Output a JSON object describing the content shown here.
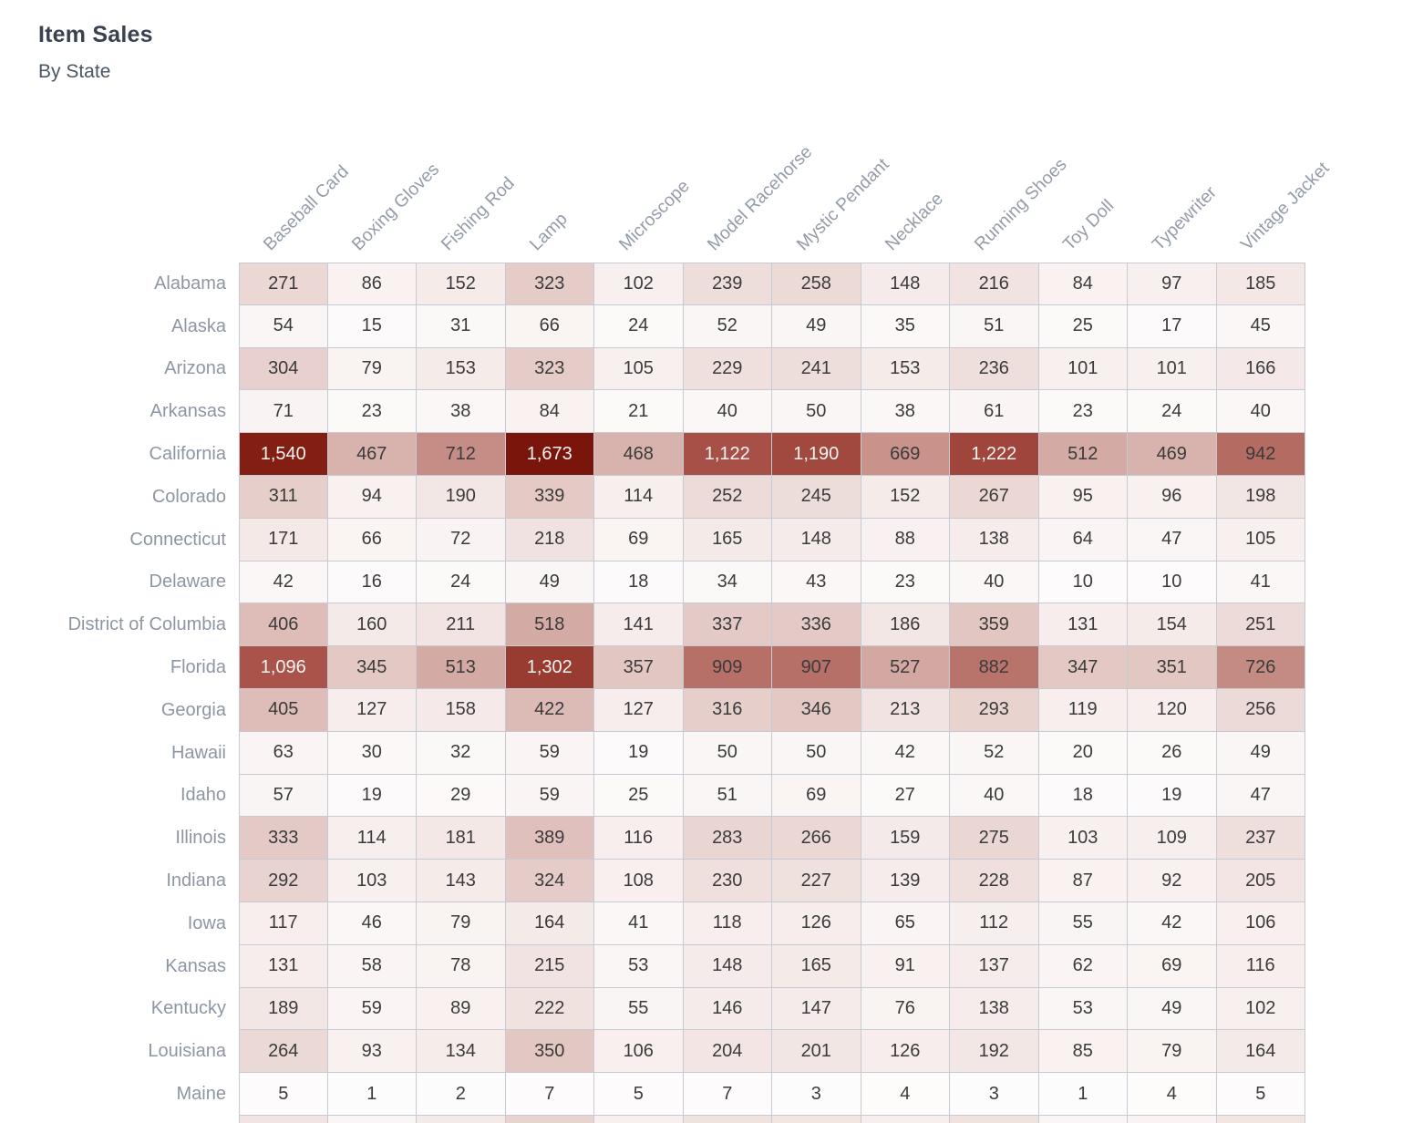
{
  "header": {
    "title": "Item Sales",
    "subtitle": "By State"
  },
  "chart_data": {
    "type": "heatmap",
    "title": "Item Sales",
    "subtitle": "By State",
    "legend_position": "none",
    "columns": [
      "Baseball Card",
      "Boxing Gloves",
      "Fishing Rod",
      "Lamp",
      "Microscope",
      "Model Racehorse",
      "Mystic Pendant",
      "Necklace",
      "Running Shoes",
      "Toy Doll",
      "Typewriter",
      "Vintage Jacket"
    ],
    "rows": [
      {
        "state": "Alabama",
        "values": [
          271,
          86,
          152,
          323,
          102,
          239,
          258,
          148,
          216,
          84,
          97,
          185
        ]
      },
      {
        "state": "Alaska",
        "values": [
          54,
          15,
          31,
          66,
          24,
          52,
          49,
          35,
          51,
          25,
          17,
          45
        ]
      },
      {
        "state": "Arizona",
        "values": [
          304,
          79,
          153,
          323,
          105,
          229,
          241,
          153,
          236,
          101,
          101,
          166
        ]
      },
      {
        "state": "Arkansas",
        "values": [
          71,
          23,
          38,
          84,
          21,
          40,
          50,
          38,
          61,
          23,
          24,
          40
        ]
      },
      {
        "state": "California",
        "values": [
          1540,
          467,
          712,
          1673,
          468,
          1122,
          1190,
          669,
          1222,
          512,
          469,
          942
        ]
      },
      {
        "state": "Colorado",
        "values": [
          311,
          94,
          190,
          339,
          114,
          252,
          245,
          152,
          267,
          95,
          96,
          198
        ]
      },
      {
        "state": "Connecticut",
        "values": [
          171,
          66,
          72,
          218,
          69,
          165,
          148,
          88,
          138,
          64,
          47,
          105
        ]
      },
      {
        "state": "Delaware",
        "values": [
          42,
          16,
          24,
          49,
          18,
          34,
          43,
          23,
          40,
          10,
          10,
          41
        ]
      },
      {
        "state": "District of Columbia",
        "values": [
          406,
          160,
          211,
          518,
          141,
          337,
          336,
          186,
          359,
          131,
          154,
          251
        ]
      },
      {
        "state": "Florida",
        "values": [
          1096,
          345,
          513,
          1302,
          357,
          909,
          907,
          527,
          882,
          347,
          351,
          726
        ]
      },
      {
        "state": "Georgia",
        "values": [
          405,
          127,
          158,
          422,
          127,
          316,
          346,
          213,
          293,
          119,
          120,
          256
        ]
      },
      {
        "state": "Hawaii",
        "values": [
          63,
          30,
          32,
          59,
          19,
          50,
          50,
          42,
          52,
          20,
          26,
          49
        ]
      },
      {
        "state": "Idaho",
        "values": [
          57,
          19,
          29,
          59,
          25,
          51,
          69,
          27,
          40,
          18,
          19,
          47
        ]
      },
      {
        "state": "Illinois",
        "values": [
          333,
          114,
          181,
          389,
          116,
          283,
          266,
          159,
          275,
          103,
          109,
          237
        ]
      },
      {
        "state": "Indiana",
        "values": [
          292,
          103,
          143,
          324,
          108,
          230,
          227,
          139,
          228,
          87,
          92,
          205
        ]
      },
      {
        "state": "Iowa",
        "values": [
          117,
          46,
          79,
          164,
          41,
          118,
          126,
          65,
          112,
          55,
          42,
          106
        ]
      },
      {
        "state": "Kansas",
        "values": [
          131,
          58,
          78,
          215,
          53,
          148,
          165,
          91,
          137,
          62,
          69,
          116
        ]
      },
      {
        "state": "Kentucky",
        "values": [
          189,
          59,
          89,
          222,
          55,
          146,
          147,
          76,
          138,
          53,
          49,
          102
        ]
      },
      {
        "state": "Louisiana",
        "values": [
          264,
          93,
          134,
          350,
          106,
          204,
          201,
          126,
          192,
          85,
          79,
          164
        ]
      },
      {
        "state": "Maine",
        "values": [
          5,
          1,
          2,
          7,
          5,
          7,
          3,
          4,
          3,
          1,
          4,
          5
        ]
      }
    ],
    "value_range": [
      0,
      1673
    ]
  },
  "heatmap": {
    "max_value": 1673,
    "min_color": "#fdfcfc",
    "max_color": "#7a150c",
    "color_stops": [
      [
        0.0,
        "#fdfcfc"
      ],
      [
        0.06,
        "#f8f0ef"
      ],
      [
        0.12,
        "#f2e6e4"
      ],
      [
        0.2,
        "#e4cac6"
      ],
      [
        0.3,
        "#d5aca6"
      ],
      [
        0.42,
        "#c68e87"
      ],
      [
        0.55,
        "#b56e65"
      ],
      [
        0.66,
        "#a8524a"
      ],
      [
        0.78,
        "#983c31"
      ],
      [
        0.9,
        "#842213"
      ],
      [
        1.0,
        "#7a150c"
      ]
    ],
    "white_text_threshold": 0.6,
    "partial_next_row_colors": [
      "#f1e4e2",
      "#faf6f5",
      "#f4eae8",
      "#e9d3ce",
      "#f7f0ef",
      "#f0e2df",
      "#f2e6e3",
      "#f6efed",
      "#f0e2df",
      "#faf6f5",
      "#f9f4f3",
      "#f2e5e2"
    ]
  }
}
